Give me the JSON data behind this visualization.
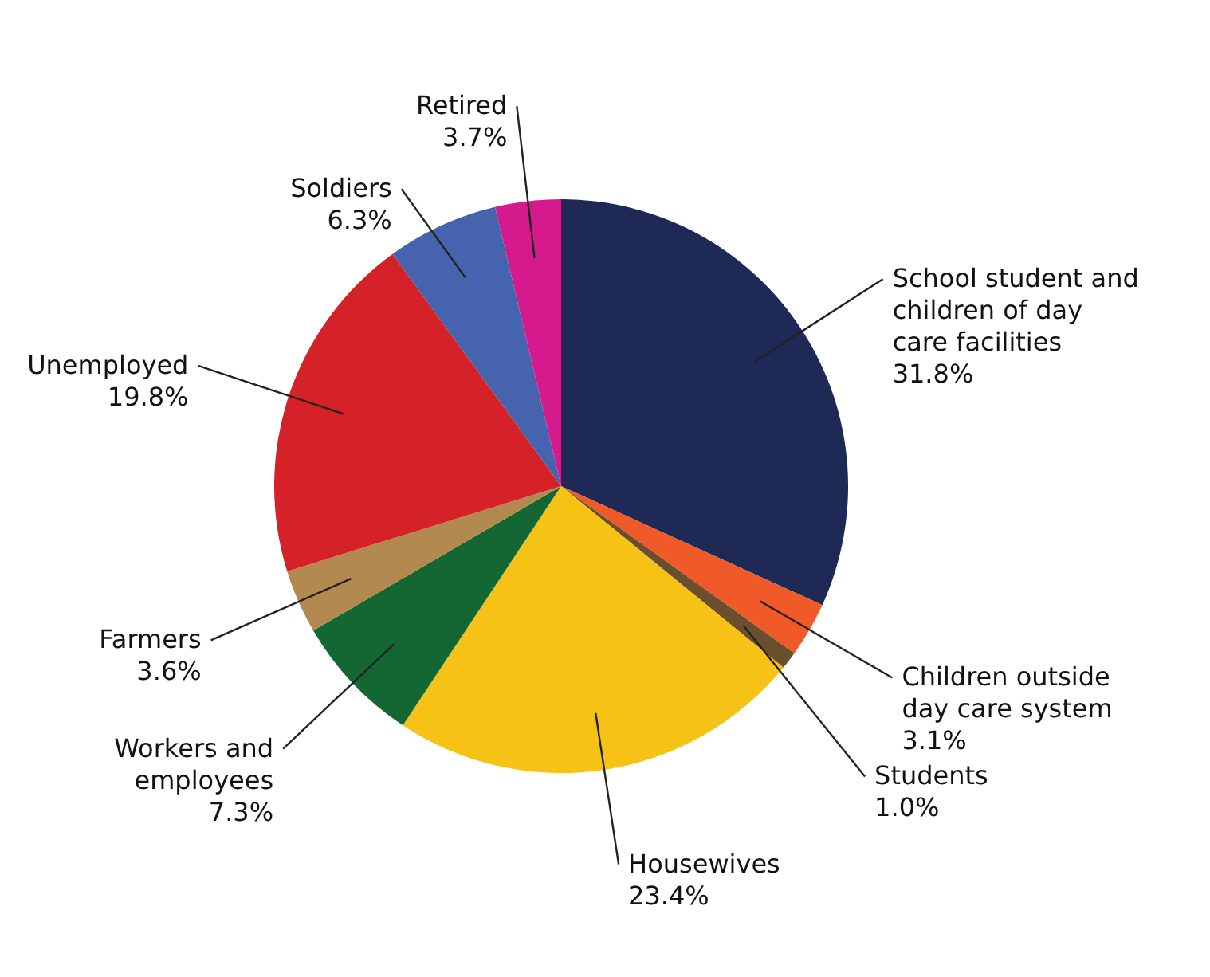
{
  "chart_data": {
    "type": "pie",
    "categories": [
      "School student and children of day care facilities",
      "Children outside day care system",
      "Students",
      "Housewives",
      "Workers and employees",
      "Farmers",
      "Unemployed",
      "Soldiers",
      "Retired"
    ],
    "values": [
      31.8,
      3.1,
      1.0,
      23.4,
      7.3,
      3.6,
      19.8,
      6.3,
      3.7
    ],
    "value_labels": [
      "31.8%",
      "3.1%",
      "1.0%",
      "23.4%",
      "7.3%",
      "3.6%",
      "19.8%",
      "6.3%",
      "3.7%"
    ],
    "colors": [
      "#1e2955",
      "#f05a28",
      "#6b4e2e",
      "#f6c215",
      "#146733",
      "#b28a50",
      "#d42228",
      "#4664ae",
      "#d41a8c"
    ]
  }
}
